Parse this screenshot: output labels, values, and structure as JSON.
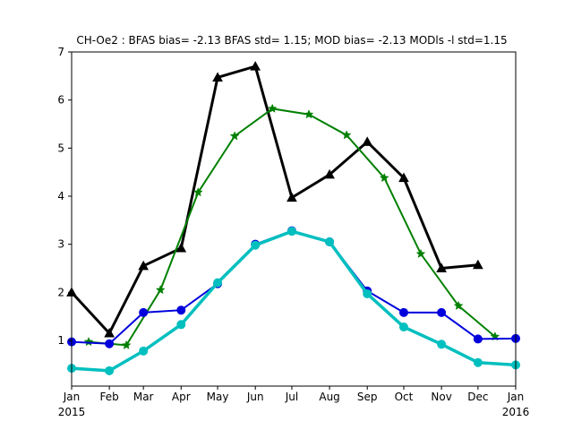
{
  "chart_data": {
    "type": "line",
    "title": "CH-Oe2   : BFAS bias= -2.13 BFAS std= 1.15; MOD bias= -2.13 MODls -l std=1.15",
    "xlabel": "",
    "ylabel": "",
    "x_ticks": [
      {
        "label": "Jan",
        "sublabel": "2015"
      },
      {
        "label": "Feb",
        "sublabel": ""
      },
      {
        "label": "Mar",
        "sublabel": ""
      },
      {
        "label": "Apr",
        "sublabel": ""
      },
      {
        "label": "May",
        "sublabel": ""
      },
      {
        "label": "Jun",
        "sublabel": ""
      },
      {
        "label": "Jul",
        "sublabel": ""
      },
      {
        "label": "Aug",
        "sublabel": ""
      },
      {
        "label": "Sep",
        "sublabel": ""
      },
      {
        "label": "Oct",
        "sublabel": ""
      },
      {
        "label": "Nov",
        "sublabel": ""
      },
      {
        "label": "Dec",
        "sublabel": ""
      },
      {
        "label": "Jan",
        "sublabel": "2016"
      }
    ],
    "y_ticks": [
      "1",
      "2",
      "3",
      "4",
      "5",
      "6",
      "7"
    ],
    "xlim": [
      "2015-01-01",
      "2016-01-01"
    ],
    "ylim": [
      0.05,
      7
    ],
    "grid": false,
    "legend": "none",
    "series": [
      {
        "color": "#000000",
        "marker": "triangle",
        "x": [
          "2015-01-01",
          "2015-02-01",
          "2015-03-01",
          "2015-04-01",
          "2015-05-01",
          "2015-06-01",
          "2015-07-01",
          "2015-08-01",
          "2015-09-01",
          "2015-10-01",
          "2015-11-01",
          "2015-12-01"
        ],
        "values": [
          2.0,
          1.15,
          2.55,
          2.92,
          6.47,
          6.7,
          3.97,
          4.45,
          5.13,
          4.38,
          2.5,
          2.57
        ]
      },
      {
        "color": "#008000",
        "marker": "star",
        "x": [
          "2015-01-15",
          "2015-02-15",
          "2015-03-15",
          "2015-04-15",
          "2015-05-15",
          "2015-06-15",
          "2015-07-15",
          "2015-08-15",
          "2015-09-15",
          "2015-10-15",
          "2015-11-15",
          "2015-12-15"
        ],
        "values": [
          0.97,
          0.9,
          2.05,
          4.08,
          5.25,
          5.82,
          5.7,
          5.27,
          4.38,
          2.8,
          1.72,
          1.08
        ]
      },
      {
        "color": "#0000dd",
        "marker": "circle",
        "x": [
          "2015-01-01",
          "2015-02-01",
          "2015-03-01",
          "2015-04-01",
          "2015-05-01",
          "2015-06-01",
          "2015-07-01",
          "2015-08-01",
          "2015-09-01",
          "2015-10-01",
          "2015-11-01",
          "2015-12-01",
          "2016-01-01"
        ],
        "values": [
          0.97,
          0.93,
          1.58,
          1.63,
          2.18,
          3.0,
          3.28,
          3.05,
          2.03,
          1.58,
          1.58,
          1.03,
          1.04
        ]
      },
      {
        "color": "#00bfbf",
        "marker": "circle",
        "x": [
          "2015-01-01",
          "2015-02-01",
          "2015-03-01",
          "2015-04-01",
          "2015-05-01",
          "2015-06-01",
          "2015-07-01",
          "2015-08-01",
          "2015-09-01",
          "2015-10-01",
          "2015-11-01",
          "2015-12-01",
          "2016-01-01"
        ],
        "values": [
          0.42,
          0.37,
          0.78,
          1.33,
          2.2,
          2.98,
          3.27,
          3.05,
          1.97,
          1.28,
          0.92,
          0.54,
          0.49
        ]
      }
    ]
  }
}
